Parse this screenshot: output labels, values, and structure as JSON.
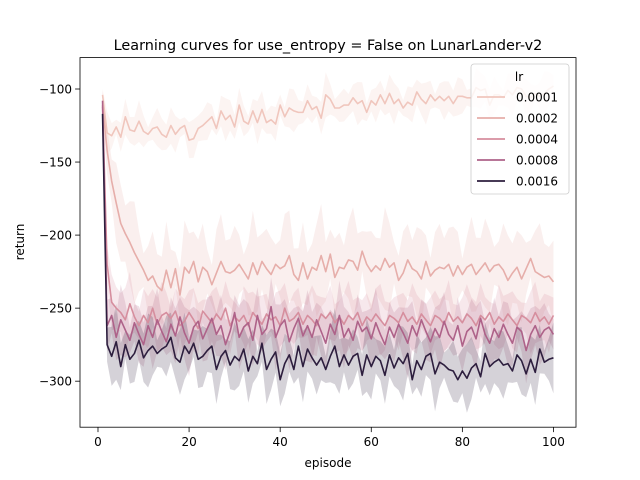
{
  "chart_data": {
    "type": "line",
    "title": "Learning curves for use_entropy = False on LunarLander-v2",
    "xlabel": "episode",
    "ylabel": "return",
    "xlim": [
      -3.95,
      104.95
    ],
    "ylim": [
      -331.5,
      -78.5
    ],
    "xticks": [
      0,
      20,
      40,
      60,
      80,
      100
    ],
    "yticks": [
      -300,
      -250,
      -200,
      -150,
      -100
    ],
    "grid": false,
    "legend": {
      "title": "lr",
      "placement": "top-right"
    },
    "confidence_band": true,
    "x": [
      1,
      2,
      3,
      4,
      5,
      6,
      7,
      8,
      9,
      10,
      11,
      12,
      13,
      14,
      15,
      16,
      17,
      18,
      19,
      20,
      21,
      22,
      23,
      24,
      25,
      26,
      27,
      28,
      29,
      30,
      31,
      32,
      33,
      34,
      35,
      36,
      37,
      38,
      39,
      40,
      41,
      42,
      43,
      44,
      45,
      46,
      47,
      48,
      49,
      50,
      51,
      52,
      53,
      54,
      55,
      56,
      57,
      58,
      59,
      60,
      61,
      62,
      63,
      64,
      65,
      66,
      67,
      68,
      69,
      70,
      71,
      72,
      73,
      74,
      75,
      76,
      77,
      78,
      79,
      80,
      81,
      82,
      83,
      84,
      85,
      86,
      87,
      88,
      89,
      90,
      91,
      92,
      93,
      94,
      95,
      96,
      97,
      98,
      99,
      100
    ],
    "series": [
      {
        "name": "0.0001",
        "color": "#f0c6bd",
        "band_halfwidth": 10,
        "values": [
          -104,
          -130,
          -132,
          -126,
          -133,
          -119,
          -128,
          -129,
          -122,
          -129,
          -131,
          -127,
          -126,
          -131,
          -133,
          -125,
          -131,
          -127,
          -125,
          -135,
          -134,
          -127,
          -125,
          -122,
          -119,
          -127,
          -115,
          -121,
          -118,
          -126,
          -111,
          -122,
          -124,
          -115,
          -123,
          -114,
          -123,
          -121,
          -124,
          -111,
          -119,
          -113,
          -115,
          -116,
          -116,
          -108,
          -114,
          -112,
          -120,
          -104,
          -107,
          -113,
          -113,
          -111,
          -111,
          -106,
          -110,
          -108,
          -116,
          -108,
          -111,
          -104,
          -110,
          -103,
          -110,
          -107,
          -113,
          -109,
          -111,
          -102,
          -107,
          -110,
          -104,
          -108,
          -105,
          -108,
          -105,
          -110,
          -105,
          -105,
          -106,
          -106,
          -99,
          -101,
          -100,
          -111,
          -104,
          -104,
          -106,
          -101,
          -104,
          -99,
          -100,
          -105,
          -106,
          -103,
          -105,
          -103,
          -100,
          -98
        ]
      },
      {
        "name": "0.0002",
        "color": "#e6aeaa",
        "band_halfwidth": 24,
        "values": [
          -111,
          -142,
          -163,
          -178,
          -192,
          -199,
          -205,
          -212,
          -218,
          -224,
          -231,
          -228,
          -235,
          -238,
          -224,
          -236,
          -223,
          -241,
          -222,
          -226,
          -218,
          -232,
          -222,
          -225,
          -234,
          -226,
          -218,
          -225,
          -226,
          -224,
          -220,
          -225,
          -230,
          -219,
          -227,
          -218,
          -223,
          -227,
          -220,
          -223,
          -221,
          -214,
          -227,
          -231,
          -219,
          -230,
          -222,
          -224,
          -214,
          -225,
          -213,
          -229,
          -222,
          -223,
          -217,
          -218,
          -224,
          -211,
          -220,
          -225,
          -221,
          -224,
          -216,
          -222,
          -219,
          -231,
          -226,
          -217,
          -223,
          -225,
          -230,
          -218,
          -228,
          -224,
          -222,
          -223,
          -220,
          -228,
          -221,
          -227,
          -222,
          -220,
          -227,
          -223,
          -219,
          -225,
          -221,
          -220,
          -224,
          -231,
          -226,
          -222,
          -230,
          -223,
          -216,
          -225,
          -227,
          -229,
          -228,
          -232
        ]
      },
      {
        "name": "0.0004",
        "color": "#d68e9e",
        "band_halfwidth": 16,
        "values": [
          -112,
          -220,
          -246,
          -250,
          -253,
          -258,
          -247,
          -256,
          -262,
          -255,
          -260,
          -250,
          -261,
          -255,
          -253,
          -257,
          -252,
          -262,
          -259,
          -253,
          -258,
          -264,
          -252,
          -256,
          -260,
          -254,
          -258,
          -250,
          -262,
          -256,
          -259,
          -255,
          -262,
          -253,
          -257,
          -261,
          -254,
          -258,
          -256,
          -262,
          -250,
          -259,
          -257,
          -253,
          -261,
          -255,
          -258,
          -262,
          -254,
          -257,
          -253,
          -260,
          -256,
          -261,
          -255,
          -258,
          -253,
          -262,
          -256,
          -259,
          -254,
          -258,
          -262,
          -255,
          -257,
          -260,
          -253,
          -259,
          -256,
          -261,
          -254,
          -258,
          -262,
          -255,
          -257,
          -261,
          -253,
          -259,
          -256,
          -260,
          -254,
          -257,
          -262,
          -255,
          -258,
          -253,
          -261,
          -256,
          -259,
          -254,
          -258,
          -262,
          -255,
          -257,
          -260,
          -253,
          -259,
          -256,
          -261,
          -255
        ]
      },
      {
        "name": "0.0008",
        "color": "#ae6289",
        "band_halfwidth": 16,
        "values": [
          -108,
          -262,
          -255,
          -270,
          -258,
          -265,
          -272,
          -260,
          -268,
          -275,
          -262,
          -270,
          -258,
          -266,
          -273,
          -261,
          -269,
          -256,
          -267,
          -274,
          -263,
          -259,
          -271,
          -264,
          -257,
          -268,
          -262,
          -275,
          -266,
          -253,
          -270,
          -263,
          -260,
          -272,
          -255,
          -268,
          -264,
          -249,
          -270,
          -262,
          -258,
          -273,
          -264,
          -257,
          -269,
          -262,
          -270,
          -258,
          -266,
          -274,
          -261,
          -268,
          -255,
          -270,
          -264,
          -272,
          -259,
          -266,
          -263,
          -271,
          -260,
          -268,
          -275,
          -263,
          -270,
          -261,
          -267,
          -274,
          -262,
          -269,
          -258,
          -266,
          -273,
          -264,
          -270,
          -259,
          -268,
          -272,
          -262,
          -276,
          -266,
          -263,
          -271,
          -257,
          -268,
          -274,
          -264,
          -270,
          -261,
          -268,
          -274,
          -263,
          -266,
          -279,
          -268,
          -262,
          -270,
          -265,
          -263,
          -268
        ]
      },
      {
        "name": "0.0016",
        "color": "#2d1e3e",
        "band_halfwidth": 17,
        "values": [
          -117,
          -275,
          -283,
          -273,
          -290,
          -275,
          -285,
          -281,
          -272,
          -284,
          -279,
          -276,
          -281,
          -278,
          -276,
          -270,
          -284,
          -287,
          -276,
          -281,
          -274,
          -285,
          -283,
          -279,
          -276,
          -292,
          -283,
          -279,
          -289,
          -283,
          -286,
          -278,
          -293,
          -283,
          -288,
          -274,
          -292,
          -285,
          -280,
          -299,
          -288,
          -282,
          -292,
          -276,
          -290,
          -278,
          -284,
          -289,
          -284,
          -292,
          -283,
          -276,
          -290,
          -282,
          -289,
          -283,
          -281,
          -296,
          -282,
          -290,
          -283,
          -286,
          -296,
          -282,
          -291,
          -284,
          -288,
          -281,
          -299,
          -286,
          -292,
          -283,
          -281,
          -295,
          -287,
          -289,
          -292,
          -293,
          -299,
          -293,
          -298,
          -291,
          -288,
          -297,
          -281,
          -290,
          -287,
          -285,
          -289,
          -288,
          -293,
          -282,
          -286,
          -295,
          -285,
          -294,
          -278,
          -287,
          -285,
          -284
        ]
      }
    ]
  }
}
